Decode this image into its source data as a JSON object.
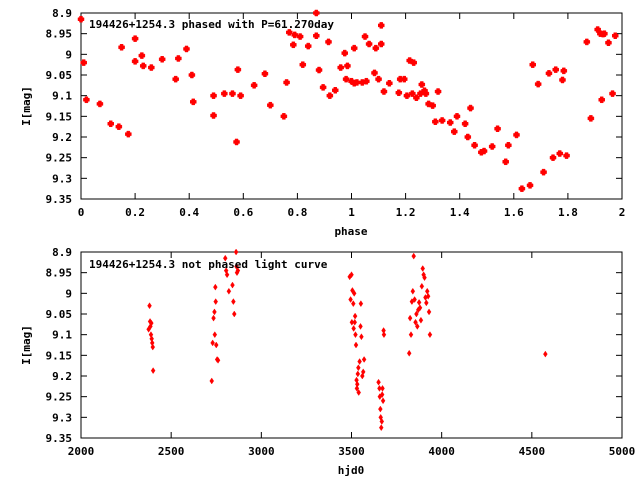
{
  "chart_data": [
    {
      "type": "scatter",
      "title": "194426+1254.3 phased with P=61.270day",
      "xlabel": "phase",
      "ylabel": "I[mag]",
      "xlim": [
        0,
        2
      ],
      "ylim": [
        9.35,
        8.9
      ],
      "y_inverted": true,
      "xticks": [
        0,
        0.2,
        0.4,
        0.6,
        0.8,
        1,
        1.2,
        1.4,
        1.6,
        1.8,
        2
      ],
      "xtick_labels": [
        "0",
        "0.2",
        "0.4",
        "0.6",
        "0.8",
        "1",
        "1.2",
        "1.4",
        "1.6",
        "1.8",
        "2"
      ],
      "yticks": [
        8.9,
        8.95,
        9,
        9.05,
        9.1,
        9.15,
        9.2,
        9.25,
        9.3,
        9.35
      ],
      "ytick_labels": [
        "8.9",
        "8.95",
        "9",
        "9.05",
        "9.1",
        "9.15",
        "9.2",
        "9.25",
        "9.3",
        "9.35"
      ],
      "grid": false,
      "marker_color": "#ff0000",
      "marker": "plus-square",
      "points": [
        [
          0.0,
          8.915
        ],
        [
          0.01,
          9.02
        ],
        [
          0.02,
          9.11
        ],
        [
          0.07,
          9.12
        ],
        [
          0.11,
          9.168
        ],
        [
          0.14,
          9.175
        ],
        [
          0.15,
          8.983
        ],
        [
          0.175,
          9.193
        ],
        [
          0.2,
          8.962
        ],
        [
          0.2,
          9.017
        ],
        [
          0.225,
          9.003
        ],
        [
          0.23,
          9.028
        ],
        [
          0.26,
          9.032
        ],
        [
          0.3,
          9.012
        ],
        [
          0.35,
          9.06
        ],
        [
          0.36,
          9.01
        ],
        [
          0.39,
          8.987
        ],
        [
          0.41,
          9.05
        ],
        [
          0.415,
          9.115
        ],
        [
          0.49,
          9.1
        ],
        [
          0.49,
          9.148
        ],
        [
          0.53,
          9.095
        ],
        [
          0.56,
          9.095
        ],
        [
          0.575,
          9.212
        ],
        [
          0.58,
          9.037
        ],
        [
          0.59,
          9.1
        ],
        [
          0.64,
          9.075
        ],
        [
          0.68,
          9.047
        ],
        [
          0.7,
          9.123
        ],
        [
          0.75,
          9.15
        ],
        [
          0.76,
          9.068
        ],
        [
          0.77,
          8.947
        ],
        [
          0.785,
          8.977
        ],
        [
          0.79,
          8.953
        ],
        [
          0.81,
          8.957
        ],
        [
          0.82,
          9.025
        ],
        [
          0.84,
          8.98
        ],
        [
          0.87,
          8.955
        ],
        [
          0.87,
          8.9
        ],
        [
          0.88,
          9.038
        ],
        [
          0.895,
          9.08
        ],
        [
          0.915,
          8.97
        ],
        [
          0.92,
          9.1
        ],
        [
          0.94,
          9.087
        ],
        [
          0.96,
          9.032
        ],
        [
          0.975,
          8.997
        ],
        [
          0.98,
          9.06
        ],
        [
          0.985,
          9.028
        ],
        [
          1.0,
          9.065
        ],
        [
          1.01,
          9.07
        ],
        [
          1.01,
          8.985
        ],
        [
          1.02,
          9.068
        ],
        [
          1.04,
          9.068
        ],
        [
          1.05,
          8.957
        ],
        [
          1.055,
          9.065
        ],
        [
          1.065,
          8.975
        ],
        [
          1.085,
          9.045
        ],
        [
          1.09,
          8.985
        ],
        [
          1.1,
          9.06
        ],
        [
          1.11,
          8.93
        ],
        [
          1.11,
          8.975
        ],
        [
          1.12,
          9.09
        ],
        [
          1.14,
          9.07
        ],
        [
          1.175,
          9.093
        ],
        [
          1.18,
          9.06
        ],
        [
          1.195,
          9.06
        ],
        [
          1.205,
          9.1
        ],
        [
          1.215,
          9.015
        ],
        [
          1.225,
          9.095
        ],
        [
          1.23,
          9.02
        ],
        [
          1.24,
          9.105
        ],
        [
          1.255,
          9.095
        ],
        [
          1.26,
          9.073
        ],
        [
          1.27,
          9.088
        ],
        [
          1.275,
          9.095
        ],
        [
          1.285,
          9.12
        ],
        [
          1.3,
          9.124
        ],
        [
          1.31,
          9.163
        ],
        [
          1.32,
          9.09
        ],
        [
          1.335,
          9.16
        ],
        [
          1.365,
          9.165
        ],
        [
          1.38,
          9.187
        ],
        [
          1.39,
          9.15
        ],
        [
          1.42,
          9.168
        ],
        [
          1.43,
          9.2
        ],
        [
          1.44,
          9.13
        ],
        [
          1.455,
          9.22
        ],
        [
          1.48,
          9.237
        ],
        [
          1.49,
          9.234
        ],
        [
          1.52,
          9.223
        ],
        [
          1.54,
          9.18
        ],
        [
          1.57,
          9.26
        ],
        [
          1.58,
          9.22
        ],
        [
          1.61,
          9.195
        ],
        [
          1.63,
          9.325
        ],
        [
          1.66,
          9.317
        ],
        [
          1.67,
          9.025
        ],
        [
          1.69,
          9.072
        ],
        [
          1.71,
          9.285
        ],
        [
          1.73,
          9.046
        ],
        [
          1.745,
          9.25
        ],
        [
          1.755,
          9.037
        ],
        [
          1.77,
          9.24
        ],
        [
          1.78,
          9.062
        ],
        [
          1.785,
          9.04
        ],
        [
          1.795,
          9.245
        ],
        [
          1.87,
          8.97
        ],
        [
          1.885,
          9.155
        ],
        [
          1.91,
          8.94
        ],
        [
          1.92,
          8.95
        ],
        [
          1.925,
          9.11
        ],
        [
          1.93,
          8.951
        ],
        [
          1.935,
          8.95
        ],
        [
          1.95,
          8.972
        ],
        [
          1.965,
          9.095
        ],
        [
          1.975,
          8.955
        ]
      ]
    },
    {
      "type": "scatter",
      "title": "194426+1254.3 not phased light curve",
      "xlabel": "hjd0",
      "ylabel": "I[mag]",
      "xlim": [
        2000,
        5000
      ],
      "ylim": [
        9.35,
        8.9
      ],
      "y_inverted": true,
      "xticks": [
        2000,
        2500,
        3000,
        3500,
        4000,
        4500,
        5000
      ],
      "xtick_labels": [
        "2000",
        "2500",
        "3000",
        "3500",
        "4000",
        "4500",
        "5000"
      ],
      "yticks": [
        8.9,
        8.95,
        9,
        9.05,
        9.1,
        9.15,
        9.2,
        9.25,
        9.3,
        9.35
      ],
      "ytick_labels": [
        "8.9",
        "8.95",
        "9",
        "9.05",
        "9.1",
        "9.15",
        "9.2",
        "9.25",
        "9.3",
        "9.35"
      ],
      "grid": false,
      "marker_color": "#ff0000",
      "marker": "small-diamond",
      "points": [
        [
          2375,
          9.087
        ],
        [
          2380,
          9.03
        ],
        [
          2383,
          9.068
        ],
        [
          2385,
          9.08
        ],
        [
          2388,
          9.1
        ],
        [
          2390,
          9.072
        ],
        [
          2392,
          9.11
        ],
        [
          2395,
          9.12
        ],
        [
          2398,
          9.13
        ],
        [
          2400,
          9.187
        ],
        [
          2725,
          9.212
        ],
        [
          2730,
          9.12
        ],
        [
          2735,
          9.06
        ],
        [
          2740,
          9.045
        ],
        [
          2742,
          9.1
        ],
        [
          2745,
          8.985
        ],
        [
          2747,
          9.02
        ],
        [
          2750,
          9.125
        ],
        [
          2755,
          9.16
        ],
        [
          2760,
          9.162
        ],
        [
          2800,
          8.915
        ],
        [
          2805,
          8.945
        ],
        [
          2810,
          8.955
        ],
        [
          2820,
          8.995
        ],
        [
          2840,
          8.98
        ],
        [
          2845,
          9.02
        ],
        [
          2850,
          9.05
        ],
        [
          2860,
          8.9
        ],
        [
          2862,
          8.935
        ],
        [
          2865,
          8.95
        ],
        [
          2870,
          8.945
        ],
        [
          3490,
          8.96
        ],
        [
          3495,
          9.015
        ],
        [
          3500,
          8.955
        ],
        [
          3502,
          9.07
        ],
        [
          3505,
          8.993
        ],
        [
          3510,
          9.025
        ],
        [
          3512,
          9.085
        ],
        [
          3515,
          9.0
        ],
        [
          3518,
          9.07
        ],
        [
          3520,
          9.055
        ],
        [
          3522,
          9.1
        ],
        [
          3525,
          9.125
        ],
        [
          3528,
          9.21
        ],
        [
          3530,
          9.23
        ],
        [
          3532,
          9.22
        ],
        [
          3535,
          9.195
        ],
        [
          3538,
          9.18
        ],
        [
          3540,
          9.24
        ],
        [
          3545,
          9.165
        ],
        [
          3550,
          9.08
        ],
        [
          3552,
          9.025
        ],
        [
          3555,
          9.105
        ],
        [
          3560,
          9.2
        ],
        [
          3565,
          9.19
        ],
        [
          3570,
          9.16
        ],
        [
          3650,
          9.215
        ],
        [
          3655,
          9.23
        ],
        [
          3657,
          9.25
        ],
        [
          3660,
          9.28
        ],
        [
          3662,
          9.3
        ],
        [
          3665,
          9.325
        ],
        [
          3668,
          9.31
        ],
        [
          3670,
          9.245
        ],
        [
          3672,
          9.23
        ],
        [
          3675,
          9.26
        ],
        [
          3678,
          9.09
        ],
        [
          3680,
          9.1
        ],
        [
          3820,
          9.145
        ],
        [
          3825,
          9.06
        ],
        [
          3830,
          9.1
        ],
        [
          3835,
          9.02
        ],
        [
          3840,
          8.995
        ],
        [
          3845,
          8.91
        ],
        [
          3850,
          9.015
        ],
        [
          3855,
          9.07
        ],
        [
          3860,
          9.05
        ],
        [
          3865,
          9.08
        ],
        [
          3870,
          9.04
        ],
        [
          3875,
          9.022
        ],
        [
          3880,
          9.035
        ],
        [
          3885,
          9.065
        ],
        [
          3890,
          8.983
        ],
        [
          3895,
          8.94
        ],
        [
          3900,
          8.955
        ],
        [
          3905,
          8.962
        ],
        [
          3910,
          9.01
        ],
        [
          3915,
          9.023
        ],
        [
          3920,
          8.995
        ],
        [
          3925,
          9.007
        ],
        [
          3930,
          9.045
        ],
        [
          3935,
          9.1
        ],
        [
          4575,
          9.147
        ]
      ]
    }
  ]
}
